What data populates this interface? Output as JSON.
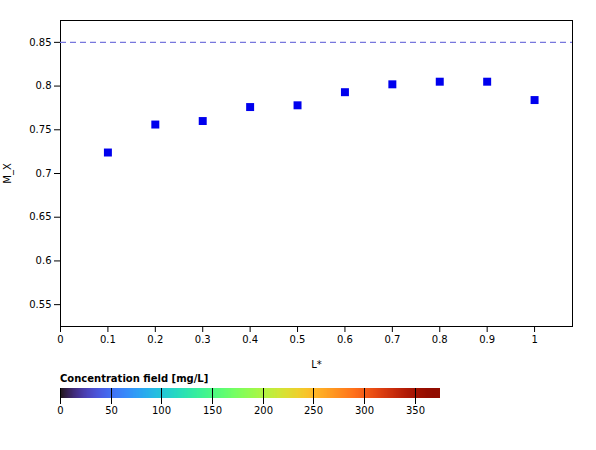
{
  "chart_data": {
    "type": "scatter",
    "x": [
      0.1,
      0.2,
      0.3,
      0.4,
      0.5,
      0.6,
      0.7,
      0.8,
      0.9,
      1.0
    ],
    "values": [
      0.724,
      0.756,
      0.76,
      0.776,
      0.778,
      0.793,
      0.802,
      0.805,
      0.805,
      0.784
    ],
    "color": "#0000EE",
    "marker": "square",
    "xlabel": "L*",
    "ylabel": "M_X",
    "xlim": [
      0,
      1.08
    ],
    "ylim": [
      0.525,
      0.875
    ],
    "xticks": [
      0,
      0.1,
      0.2,
      0.3,
      0.4,
      0.5,
      0.6,
      0.7,
      0.8,
      0.9,
      1.0
    ],
    "yticks": [
      0.55,
      0.6,
      0.65,
      0.7,
      0.75,
      0.8,
      0.85
    ],
    "reference_line": {
      "y": 0.85,
      "color": "#7777DD",
      "line_style": "dashed"
    },
    "colorbar": {
      "label": "Concentration field [mg/L]",
      "range": [
        0,
        375
      ],
      "ticks": [
        0,
        50,
        100,
        150,
        200,
        250,
        300,
        350
      ]
    }
  }
}
